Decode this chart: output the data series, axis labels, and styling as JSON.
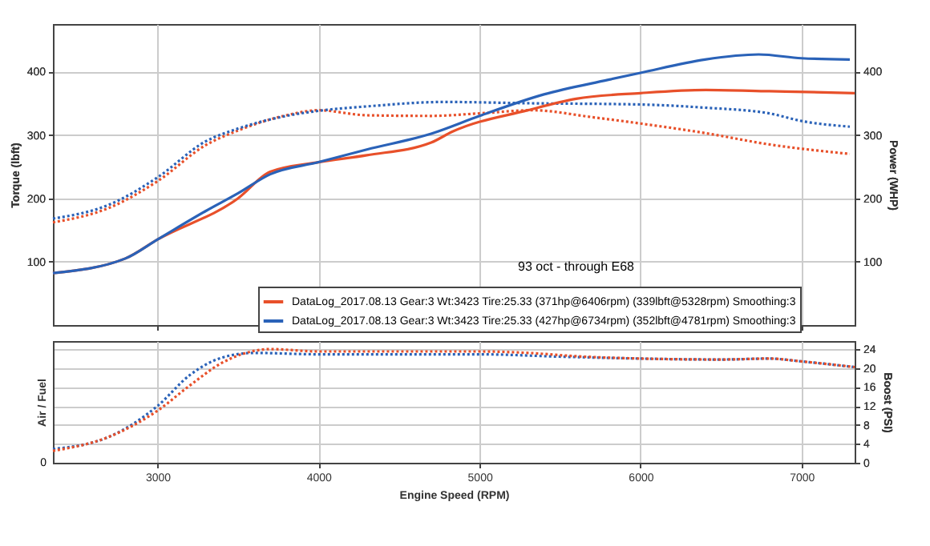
{
  "chart_data": [
    {
      "type": "line",
      "ylabel": "Torque (lbft)",
      "y2label": "Power (WHP)",
      "annotations": [
        "93 oct - through E68"
      ],
      "xlim": [
        2350,
        7330
      ],
      "xticks": [
        3000,
        4000,
        5000,
        6000,
        7000
      ],
      "ylim": [
        0,
        475
      ],
      "yticks": [
        100,
        200,
        300,
        400
      ],
      "y2lim": [
        0,
        475
      ],
      "y2ticks": [
        100,
        200,
        300,
        400
      ],
      "grid": true,
      "legend": "bottom right",
      "tick_labels": "y",
      "series": [
        {
          "name": "DataLog_2017.08.13 Gear:3 Wt:3423 Tire:25.33 (371hp@6406rpm) (339lbft@5328rpm) Smoothing:3",
          "color": "#e8502a",
          "axis": "y2",
          "line_style": "solid",
          "x": [
            2350,
            2800,
            3000,
            3500,
            3700,
            4000,
            4300,
            4700,
            4830,
            5300,
            5600,
            6000,
            6406,
            6800,
            7330
          ],
          "values": [
            82,
            105,
            135,
            200,
            242,
            257,
            268,
            288,
            305,
            339,
            357,
            366,
            371,
            369,
            366
          ]
        },
        {
          "name": "DataLog_2017.08.13 Gear:3 Wt:3423 Tire:25.33 (427hp@6734rpm) (352lbft@4781rpm) Smoothing:3",
          "color": "#2a62b8",
          "axis": "y2",
          "line_style": "solid",
          "x": [
            2350,
            2800,
            3000,
            3300,
            3500,
            3700,
            4000,
            4300,
            4700,
            5000,
            5400,
            5800,
            6000,
            6400,
            6734,
            7000,
            7300
          ],
          "values": [
            82,
            105,
            135,
            180,
            208,
            238,
            257,
            277,
            302,
            330,
            364,
            387,
            398,
            419,
            427,
            421,
            419
          ]
        },
        {
          "color": "#e8502a",
          "line_style": "dotted",
          "x": [
            2350,
            2700,
            3000,
            3300,
            3500,
            3800,
            4000,
            4300,
            4700,
            5000,
            5328,
            5700,
            6000,
            6400,
            6800,
            7300
          ],
          "values": [
            162,
            185,
            227,
            284,
            307,
            331,
            339,
            331,
            330,
            334,
            339,
            328,
            318,
            303,
            285,
            270
          ]
        },
        {
          "color": "#2a62b8",
          "line_style": "dotted",
          "x": [
            2350,
            2700,
            3000,
            3300,
            3500,
            3800,
            4000,
            4300,
            4781,
            5300,
            6000,
            6400,
            6800,
            7000,
            7300
          ],
          "values": [
            168,
            190,
            233,
            290,
            310,
            330,
            338,
            345,
            352,
            350,
            348,
            343,
            334,
            322,
            313
          ]
        }
      ]
    },
    {
      "type": "line",
      "xlabel": "Engine Speed (RPM)",
      "ylabel": "Air / Fuel",
      "y2label": "Boost (PSI)",
      "annotations": [
        "0"
      ],
      "xlim": [
        2350,
        7330
      ],
      "xticks": [
        3000,
        4000,
        5000,
        6000,
        7000
      ],
      "y2lim": [
        0,
        25.7
      ],
      "y2ticks": [
        0,
        4,
        8,
        12,
        16,
        20,
        24
      ],
      "grid": true,
      "series": [
        {
          "color": "#2a62b8",
          "axis": "y2",
          "line_style": "dotted",
          "x": [
            2350,
            2700,
            3000,
            3200,
            3400,
            3600,
            4000,
            5000,
            5500,
            6000,
            6500,
            6800,
            7000,
            7330
          ],
          "values": [
            2.9,
            5.5,
            12,
            18.5,
            22.2,
            23.2,
            22.9,
            22.9,
            22.4,
            22,
            21.8,
            22,
            21.4,
            20.2
          ]
        },
        {
          "color": "#e8502a",
          "axis": "y2",
          "line_style": "dotted",
          "x": [
            2350,
            2700,
            3000,
            3200,
            3400,
            3550,
            3700,
            4000,
            4500,
            5000,
            5300,
            5600,
            6000,
            6500,
            6800,
            7000,
            7330
          ],
          "values": [
            2.5,
            5.5,
            11,
            16.3,
            21.1,
            23.2,
            24,
            23.5,
            23.5,
            23.5,
            23.2,
            22.5,
            22,
            21.8,
            22,
            21.4,
            20.2
          ]
        }
      ]
    }
  ]
}
